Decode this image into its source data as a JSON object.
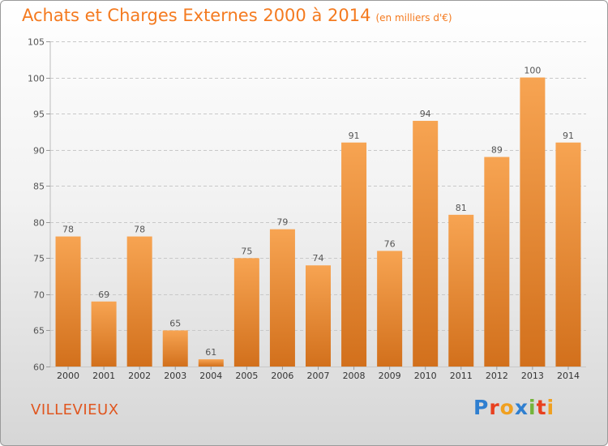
{
  "title": "Achats et Charges Externes 2000 à 2014",
  "subtitle": "(en milliers d'€)",
  "location": "VILLEVIEUX",
  "logo": {
    "text": "Proxiti",
    "letters": [
      {
        "ch": "P",
        "color": "#2f7fd0"
      },
      {
        "ch": "r",
        "color": "#e8401f"
      },
      {
        "ch": "o",
        "color": "#f0a020"
      },
      {
        "ch": "x",
        "color": "#2f7fd0"
      },
      {
        "ch": "i",
        "color": "#74b43a"
      },
      {
        "ch": "t",
        "color": "#e8401f"
      },
      {
        "ch": "i",
        "color": "#f0a020"
      }
    ]
  },
  "chart_data": {
    "type": "bar",
    "title": "Achats et Charges Externes 2000 à 2014",
    "subtitle": "(en milliers d'€)",
    "categories": [
      "2000",
      "2001",
      "2002",
      "2003",
      "2004",
      "2005",
      "2006",
      "2007",
      "2008",
      "2009",
      "2010",
      "2011",
      "2012",
      "2013",
      "2014"
    ],
    "values": [
      78,
      69,
      78,
      65,
      61,
      75,
      79,
      74,
      91,
      76,
      94,
      81,
      89,
      100,
      91
    ],
    "ylim": [
      60,
      105
    ],
    "yticks": [
      60,
      65,
      70,
      75,
      80,
      85,
      90,
      95,
      100,
      105
    ],
    "grid": true,
    "data_labels": true,
    "colors": {
      "bar_top": "#f7a452",
      "bar_bottom": "#d2701c",
      "grid": "#c8c8c8",
      "axis_text": "#555555"
    }
  }
}
